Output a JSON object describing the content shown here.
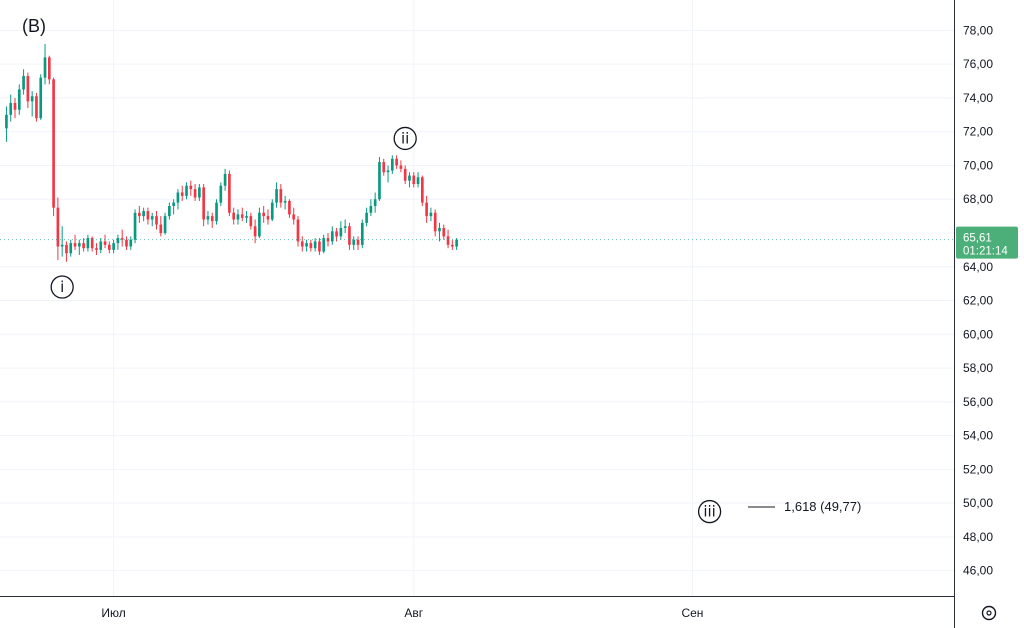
{
  "chart_data": {
    "type": "candlestick",
    "corner_label": "(B)",
    "y_ticks": [
      "78,00",
      "76,00",
      "74,00",
      "72,00",
      "70,00",
      "68,00",
      "66,00",
      "64,00",
      "62,00",
      "60,00",
      "58,00",
      "56,00",
      "54,00",
      "52,00",
      "50,00",
      "48,00",
      "46,00"
    ],
    "y_tick_values": [
      78,
      76,
      74,
      72,
      70,
      68,
      66,
      64,
      62,
      60,
      58,
      56,
      54,
      52,
      50,
      48,
      46
    ],
    "ylim": [
      44.5,
      79.8
    ],
    "x_labels": [
      "Июл",
      "Авг",
      "Сен"
    ],
    "x_label_index": [
      25,
      95,
      160
    ],
    "x_range": [
      -1.5,
      221
    ],
    "current_price": {
      "value": 65.61,
      "label": "65,61",
      "countdown": "01:21:14"
    },
    "wave_labels": [
      {
        "text": "i",
        "index": 13,
        "price": 62.8
      },
      {
        "text": "ii",
        "index": 93,
        "price": 71.6
      },
      {
        "text": "iii",
        "index": 164,
        "price": 49.5
      }
    ],
    "fib_level": {
      "text": "1,618 (49,77)",
      "price": 49.77
    },
    "candles": [
      [
        72.2,
        73.5,
        71.4,
        73.0
      ],
      [
        73.0,
        74.2,
        72.6,
        73.7
      ],
      [
        73.7,
        74.0,
        72.8,
        73.3
      ],
      [
        73.3,
        74.8,
        73.0,
        74.5
      ],
      [
        74.5,
        75.7,
        74.2,
        75.3
      ],
      [
        75.3,
        75.5,
        73.4,
        73.8
      ],
      [
        73.8,
        74.4,
        72.9,
        74.1
      ],
      [
        74.1,
        74.3,
        72.6,
        72.8
      ],
      [
        72.8,
        75.4,
        72.7,
        75.2
      ],
      [
        75.2,
        77.2,
        74.8,
        76.4
      ],
      [
        76.4,
        76.5,
        74.8,
        75.1
      ],
      [
        75.1,
        75.2,
        67.0,
        67.5
      ],
      [
        67.5,
        68.1,
        64.4,
        65.2
      ],
      [
        65.2,
        66.4,
        64.6,
        65.3
      ],
      [
        65.3,
        65.5,
        64.3,
        64.8
      ],
      [
        64.8,
        65.6,
        64.6,
        65.4
      ],
      [
        65.4,
        65.9,
        65.0,
        65.2
      ],
      [
        65.2,
        65.6,
        64.7,
        65.4
      ],
      [
        65.4,
        65.7,
        64.9,
        65.1
      ],
      [
        65.1,
        65.9,
        64.9,
        65.7
      ],
      [
        65.7,
        65.8,
        64.9,
        65.1
      ],
      [
        65.1,
        65.4,
        64.7,
        65.0
      ],
      [
        65.0,
        65.7,
        64.8,
        65.5
      ],
      [
        65.5,
        65.9,
        65.1,
        65.3
      ],
      [
        65.3,
        65.5,
        64.8,
        65.0
      ],
      [
        65.0,
        65.6,
        64.8,
        65.4
      ],
      [
        65.4,
        65.9,
        65.0,
        65.7
      ],
      [
        65.7,
        66.2,
        65.2,
        65.6
      ],
      [
        65.6,
        65.8,
        65.0,
        65.2
      ],
      [
        65.2,
        65.8,
        65.0,
        65.6
      ],
      [
        65.6,
        67.4,
        65.4,
        67.2
      ],
      [
        67.2,
        67.6,
        66.6,
        67.0
      ],
      [
        67.0,
        67.5,
        66.7,
        67.3
      ],
      [
        67.3,
        67.5,
        66.5,
        66.8
      ],
      [
        66.8,
        67.2,
        66.4,
        67.0
      ],
      [
        67.0,
        67.3,
        66.2,
        66.5
      ],
      [
        66.5,
        67.0,
        65.8,
        66.0
      ],
      [
        66.0,
        67.2,
        65.9,
        67.0
      ],
      [
        67.0,
        67.8,
        66.8,
        67.6
      ],
      [
        67.6,
        68.0,
        67.1,
        67.8
      ],
      [
        67.8,
        68.6,
        67.4,
        68.4
      ],
      [
        68.4,
        68.8,
        67.9,
        68.2
      ],
      [
        68.2,
        69.0,
        68.0,
        68.8
      ],
      [
        68.8,
        69.1,
        68.2,
        68.6
      ],
      [
        68.6,
        68.9,
        67.9,
        68.1
      ],
      [
        68.1,
        68.9,
        67.9,
        68.7
      ],
      [
        68.7,
        68.9,
        66.4,
        66.8
      ],
      [
        66.8,
        67.3,
        66.5,
        67.0
      ],
      [
        67.0,
        67.2,
        66.3,
        66.7
      ],
      [
        66.7,
        68.0,
        66.5,
        67.8
      ],
      [
        67.8,
        69.0,
        67.6,
        68.8
      ],
      [
        68.8,
        69.8,
        68.5,
        69.5
      ],
      [
        69.5,
        69.7,
        67.0,
        67.2
      ],
      [
        67.2,
        67.5,
        66.5,
        66.8
      ],
      [
        66.8,
        67.4,
        66.5,
        67.1
      ],
      [
        67.1,
        67.5,
        66.7,
        66.9
      ],
      [
        66.9,
        67.3,
        66.6,
        67.0
      ],
      [
        67.0,
        67.2,
        66.2,
        66.4
      ],
      [
        66.4,
        66.8,
        65.4,
        65.8
      ],
      [
        65.8,
        67.5,
        65.7,
        67.2
      ],
      [
        67.2,
        67.6,
        66.6,
        67.0
      ],
      [
        67.0,
        67.4,
        66.5,
        66.8
      ],
      [
        66.8,
        68.0,
        66.7,
        67.8
      ],
      [
        67.8,
        69.0,
        67.5,
        68.6
      ],
      [
        68.6,
        68.9,
        67.5,
        67.8
      ],
      [
        67.8,
        68.2,
        67.4,
        67.9
      ],
      [
        67.9,
        68.0,
        66.9,
        67.1
      ],
      [
        67.1,
        67.5,
        66.5,
        66.8
      ],
      [
        66.8,
        67.0,
        65.2,
        65.5
      ],
      [
        65.5,
        65.8,
        64.9,
        65.2
      ],
      [
        65.2,
        65.6,
        64.9,
        65.4
      ],
      [
        65.4,
        65.6,
        64.9,
        65.1
      ],
      [
        65.1,
        65.7,
        64.9,
        65.5
      ],
      [
        65.5,
        65.7,
        64.7,
        64.9
      ],
      [
        64.9,
        65.9,
        64.8,
        65.7
      ],
      [
        65.7,
        66.0,
        65.2,
        65.5
      ],
      [
        65.5,
        66.4,
        65.3,
        66.1
      ],
      [
        66.1,
        66.3,
        65.5,
        65.8
      ],
      [
        65.8,
        66.7,
        65.6,
        66.3
      ],
      [
        66.3,
        66.8,
        66.0,
        66.4
      ],
      [
        66.4,
        66.6,
        65.0,
        65.3
      ],
      [
        65.3,
        65.8,
        65.0,
        65.6
      ],
      [
        65.6,
        65.8,
        65.0,
        65.3
      ],
      [
        65.3,
        66.8,
        65.1,
        66.6
      ],
      [
        66.6,
        67.5,
        66.4,
        67.2
      ],
      [
        67.2,
        68.0,
        67.0,
        67.6
      ],
      [
        67.6,
        68.4,
        67.2,
        68.0
      ],
      [
        68.0,
        70.5,
        67.9,
        70.2
      ],
      [
        70.2,
        70.4,
        69.4,
        69.6
      ],
      [
        69.6,
        70.0,
        69.0,
        69.7
      ],
      [
        69.7,
        70.6,
        69.5,
        70.4
      ],
      [
        70.4,
        70.6,
        69.8,
        70.0
      ],
      [
        70.0,
        70.3,
        69.6,
        69.8
      ],
      [
        69.8,
        70.0,
        68.9,
        69.1
      ],
      [
        69.1,
        69.6,
        68.7,
        69.4
      ],
      [
        69.4,
        69.6,
        68.7,
        68.9
      ],
      [
        68.9,
        69.6,
        68.7,
        69.3
      ],
      [
        69.3,
        69.4,
        67.6,
        67.8
      ],
      [
        67.8,
        68.2,
        66.6,
        67.0
      ],
      [
        67.0,
        67.5,
        66.7,
        67.2
      ],
      [
        67.2,
        67.4,
        65.8,
        66.1
      ],
      [
        66.1,
        66.6,
        65.5,
        66.3
      ],
      [
        66.3,
        66.5,
        65.6,
        65.8
      ],
      [
        65.8,
        66.2,
        65.1,
        65.3
      ],
      [
        65.3,
        65.6,
        65.0,
        65.2
      ],
      [
        65.2,
        65.7,
        65.0,
        65.61
      ]
    ]
  }
}
